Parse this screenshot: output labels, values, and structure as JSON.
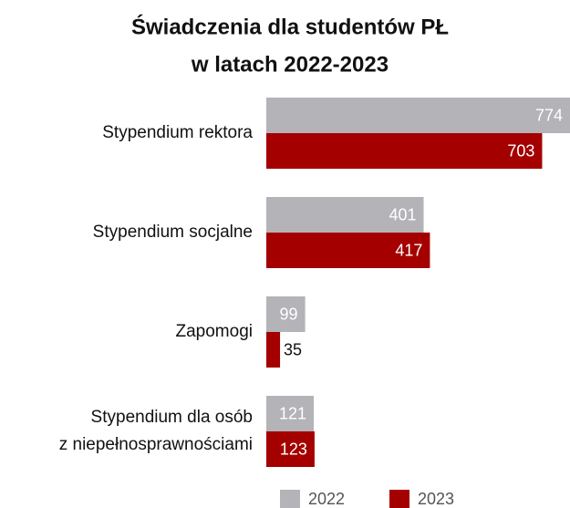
{
  "chart_data": {
    "type": "bar",
    "orientation": "horizontal",
    "title": [
      "Świadczenia dla studentów PŁ",
      "w latach 2022-2023"
    ],
    "categories": [
      "Stypendium rektora",
      "Stypendium socjalne",
      "Zapomogi",
      "Stypendium dla osób\nz niepełnosprawnościami"
    ],
    "series": [
      {
        "name": "2022",
        "color": "#b3b3b8",
        "values": [
          774,
          401,
          99,
          121
        ]
      },
      {
        "name": "2023",
        "color": "#a50000",
        "values": [
          703,
          417,
          35,
          123
        ]
      }
    ],
    "legend": "bottom"
  }
}
